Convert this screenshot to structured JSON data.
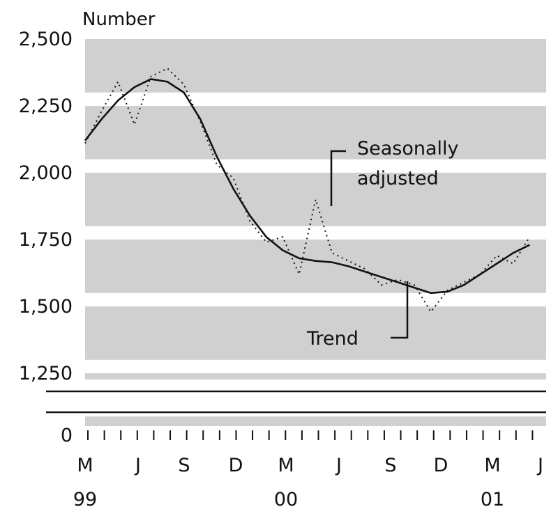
{
  "chart_data": {
    "type": "line",
    "ylabel": "Number",
    "y_ticks": [
      "2,500",
      "2,250",
      "2,000",
      "1,750",
      "1,500",
      "1,250",
      "0"
    ],
    "y_tick_values": [
      2500,
      2250,
      2000,
      1750,
      1500,
      1250,
      0
    ],
    "axis_break": true,
    "ylim_upper_segment": [
      1200,
      2500
    ],
    "x_ticks": [
      {
        "label": "M",
        "year": "99",
        "month_index": 0
      },
      {
        "label": "J",
        "year": "",
        "month_index": 3
      },
      {
        "label": "S",
        "year": "",
        "month_index": 6
      },
      {
        "label": "D",
        "year": "",
        "month_index": 9
      },
      {
        "label": "M",
        "year": "00",
        "month_index": 12
      },
      {
        "label": "J",
        "year": "",
        "month_index": 15
      },
      {
        "label": "S",
        "year": "",
        "month_index": 18
      },
      {
        "label": "D",
        "year": "",
        "month_index": 21
      },
      {
        "label": "M",
        "year": "01",
        "month_index": 24
      },
      {
        "label": "J",
        "year": "",
        "month_index": 27
      }
    ],
    "minor_tick_count": 28,
    "grid": "alternating horizontal bands",
    "series": [
      {
        "name": "Trend",
        "style": "solid",
        "x": [
          0,
          1,
          2,
          3,
          4,
          5,
          6,
          7,
          8,
          9,
          10,
          11,
          12,
          13,
          14,
          15,
          16,
          17,
          18,
          19,
          20,
          21,
          22,
          23,
          24,
          25,
          26,
          27
        ],
        "values": [
          2120,
          2200,
          2270,
          2320,
          2350,
          2340,
          2300,
          2200,
          2060,
          1940,
          1840,
          1760,
          1710,
          1680,
          1670,
          1665,
          1650,
          1630,
          1610,
          1590,
          1570,
          1550,
          1555,
          1580,
          1620,
          1660,
          1700,
          1730
        ]
      },
      {
        "name": "Seasonally adjusted",
        "style": "dotted",
        "x": [
          0,
          1,
          2,
          3,
          4,
          5,
          6,
          7,
          8,
          9,
          10,
          11,
          12,
          13,
          14,
          15,
          16,
          17,
          18,
          19,
          20,
          21,
          22,
          23,
          24,
          25,
          26,
          27
        ],
        "values": [
          2110,
          2230,
          2340,
          2180,
          2360,
          2390,
          2330,
          2190,
          2030,
          1980,
          1820,
          1740,
          1760,
          1620,
          1900,
          1700,
          1670,
          1640,
          1580,
          1600,
          1580,
          1480,
          1560,
          1590,
          1620,
          1690,
          1660,
          1760
        ]
      }
    ],
    "annotations": [
      {
        "text_line1": "Seasonally",
        "text_line2": "adjusted",
        "series": "Seasonally adjusted"
      },
      {
        "text": "Trend",
        "series": "Trend"
      }
    ]
  }
}
